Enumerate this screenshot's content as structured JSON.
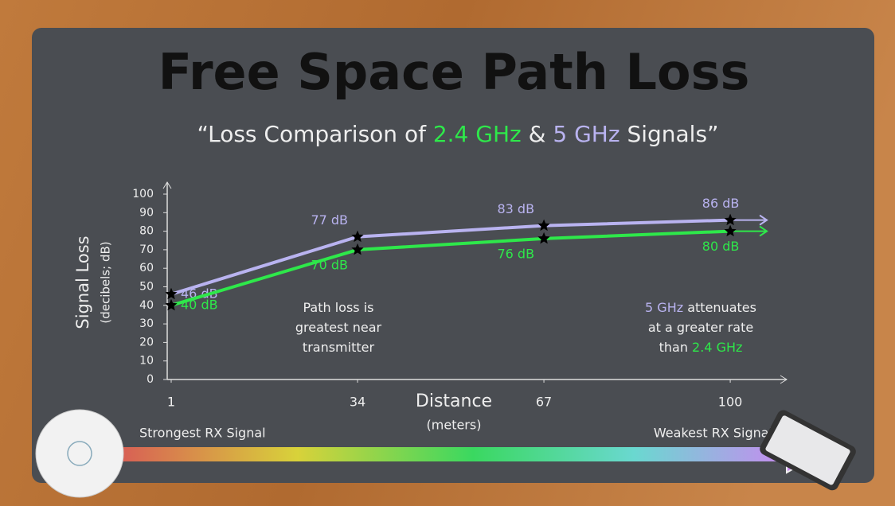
{
  "chart_data": {
    "type": "line",
    "title": "Free Space Path Loss",
    "subtitle": [
      "“Loss Comparison of ",
      "2.4 GHz",
      " & ",
      "5 GHz",
      " Signals”"
    ],
    "x": [
      1,
      34,
      67,
      100
    ],
    "xlim": [
      1,
      110
    ],
    "xticks": [
      1,
      34,
      67,
      100
    ],
    "ylim": [
      0,
      100
    ],
    "yticks": [
      0,
      10,
      20,
      30,
      40,
      50,
      60,
      70,
      80,
      90,
      100
    ],
    "y_label": "Signal Loss",
    "y_sublabel": "(decibels; dB)",
    "x_label": "Distance",
    "x_sublabel": "(meters)",
    "series": [
      {
        "name": "5 GHz",
        "color": "#b9b3f0",
        "values": [
          46,
          77,
          83,
          86
        ],
        "value_labels": [
          "46 dB",
          "77 dB",
          "83 dB",
          "86 dB"
        ]
      },
      {
        "name": "2.4 GHz",
        "color": "#2ee84a",
        "values": [
          40,
          70,
          76,
          80
        ],
        "value_labels": [
          "40 dB",
          "70 dB",
          "76 dB",
          "80 dB"
        ]
      }
    ],
    "annotations": [
      {
        "lines": [
          [
            "Path loss is"
          ],
          [
            "greatest near"
          ],
          [
            "transmitter"
          ]
        ]
      },
      {
        "lines": [
          [
            "5 GHz",
            " attenuates"
          ],
          [
            "at a greater rate"
          ],
          [
            "than ",
            "2.4 GHz"
          ]
        ]
      }
    ],
    "left_label": "Strongest RX Signal",
    "right_label": "Weakest RX Signal"
  }
}
